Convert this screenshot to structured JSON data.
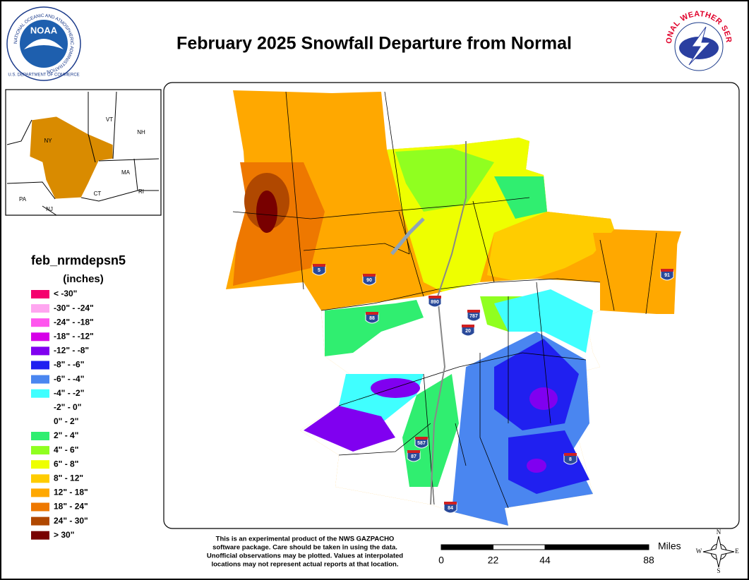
{
  "header": {
    "title": "February 2025 Snowfall Departure from Normal"
  },
  "logos": {
    "noaa": "NOAA",
    "noaa_ring": "NATIONAL OCEANIC AND ATMOSPHERIC ADMINISTRATION",
    "noaa_ring_bottom": "U.S. DEPARTMENT OF COMMERCE",
    "nws": "NATIONAL WEATHER SERVICE"
  },
  "inset": {
    "labels": [
      "VT",
      "NH",
      "NY",
      "MA",
      "CT",
      "RI",
      "PA",
      "NJ"
    ]
  },
  "legend": {
    "title": "feb_nrmdepsn5",
    "units": "(inches)",
    "items": [
      {
        "label": "< -30\"",
        "color": "#f5006e"
      },
      {
        "label": "-30\" - -24\"",
        "color": "#ffa6f0"
      },
      {
        "label": "-24\" - -18\"",
        "color": "#ff55ee"
      },
      {
        "label": "-18\" - -12\"",
        "color": "#d600e8"
      },
      {
        "label": "-12\" - -8\"",
        "color": "#8000f0"
      },
      {
        "label": "-8\" - -6\"",
        "color": "#2020f0"
      },
      {
        "label": "-6\" - -4\"",
        "color": "#4a86f0"
      },
      {
        "label": "-4\" - -2\"",
        "color": "#40ffff"
      },
      {
        "label": "-2\" - 0\"",
        "color": "#ffffff"
      },
      {
        "label": "0\" - 2\"",
        "color": "#ffffff"
      },
      {
        "label": "2\" - 4\"",
        "color": "#30ee70"
      },
      {
        "label": "4\" - 6\"",
        "color": "#90ff20"
      },
      {
        "label": "6\" - 8\"",
        "color": "#eeff00"
      },
      {
        "label": "8\" - 12\"",
        "color": "#ffcc00"
      },
      {
        "label": "12\" - 18\"",
        "color": "#ffa800"
      },
      {
        "label": "18\" - 24\"",
        "color": "#ee7800"
      },
      {
        "label": "24\" - 30\"",
        "color": "#b04800"
      },
      {
        "label": "> 30\"",
        "color": "#780000"
      }
    ]
  },
  "highways": [
    "5",
    "90",
    "890",
    "787",
    "88",
    "20",
    "91",
    "587",
    "87",
    "84",
    "8"
  ],
  "disclaimer": [
    "This is an experimental product of the NWS GAZPACHO",
    "software package. Care should be taken in using the data.",
    "Unofficial observations may be plotted. Values at interpolated",
    "locations may not represent actual reports at that location."
  ],
  "scale": {
    "unit": "Miles",
    "ticks": [
      0,
      22,
      44,
      88
    ]
  },
  "compass": [
    "N",
    "S",
    "E",
    "W"
  ]
}
